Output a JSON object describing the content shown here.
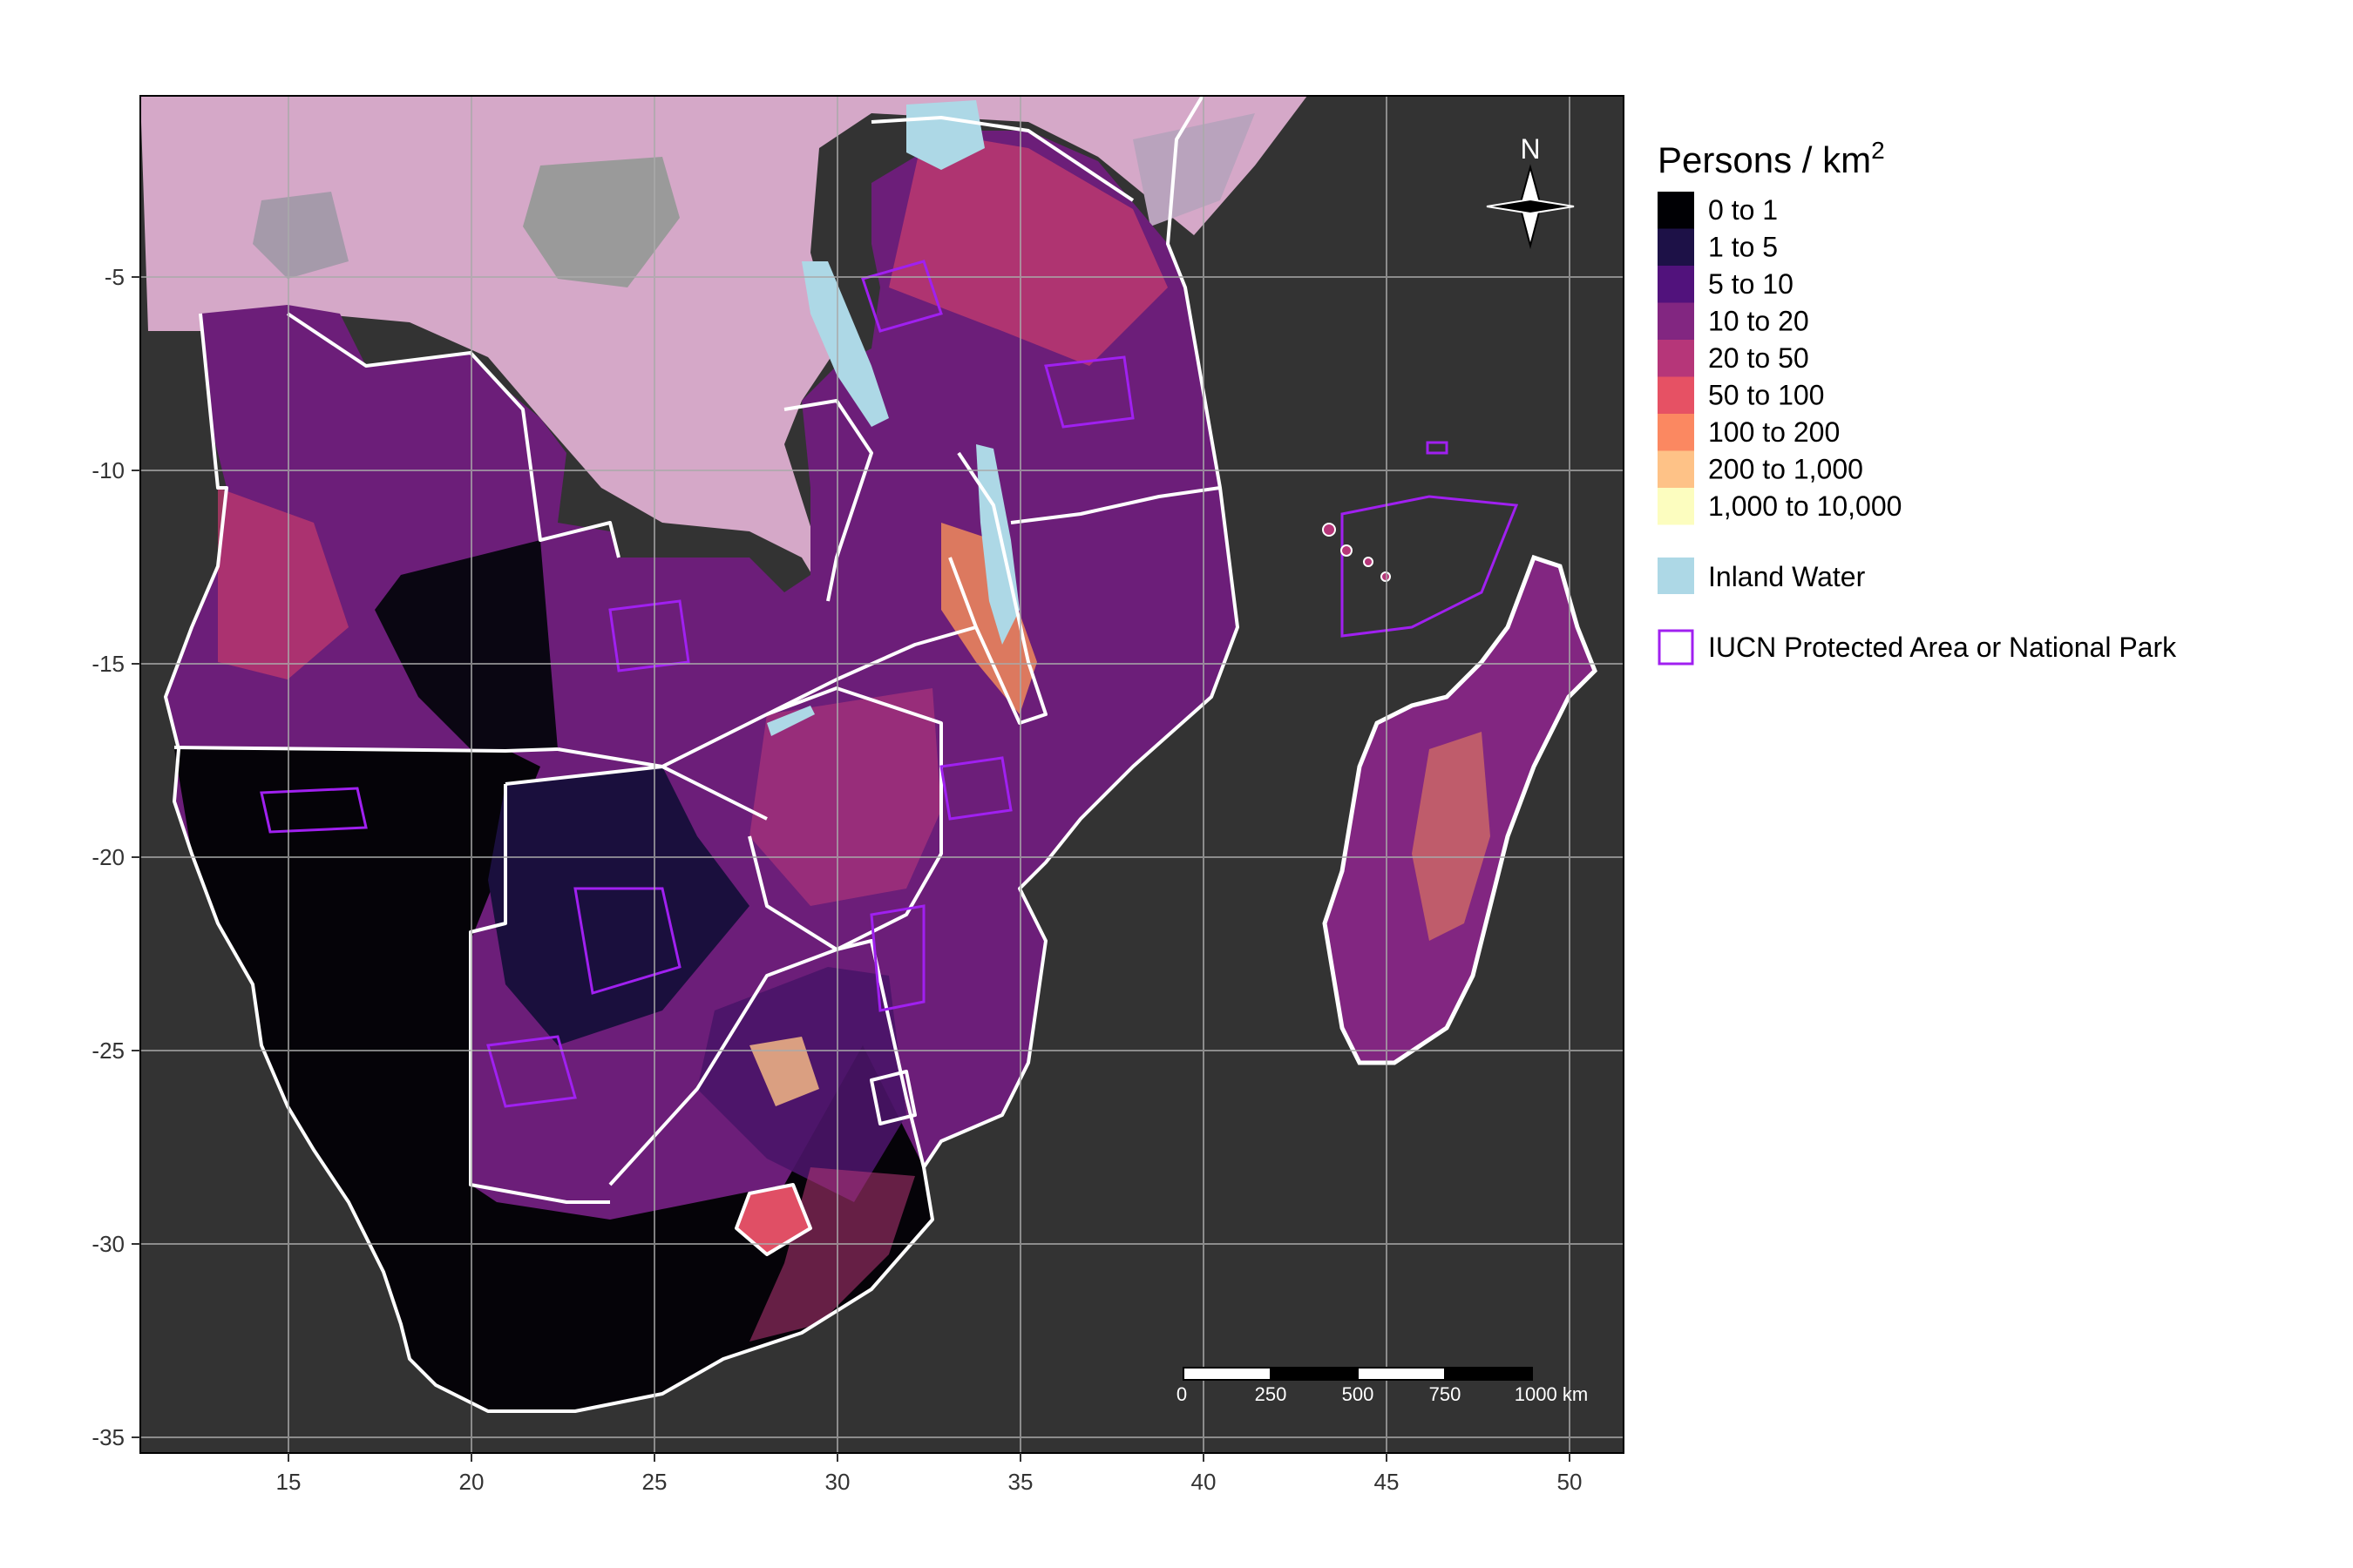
{
  "axes": {
    "x_ticks": [
      "15",
      "20",
      "25",
      "30",
      "35",
      "40",
      "45",
      "50"
    ],
    "y_ticks": [
      "-5",
      "-10",
      "-15",
      "-20",
      "-25",
      "-30",
      "-35"
    ]
  },
  "legend": {
    "title": "Persons / km",
    "title_superscript": "2",
    "density_classes": [
      {
        "label": "0 to 1",
        "color": "#000004"
      },
      {
        "label": "1 to 5",
        "color": "#1d1147"
      },
      {
        "label": "5 to 10",
        "color": "#51127c"
      },
      {
        "label": "10 to 20",
        "color": "#822681"
      },
      {
        "label": "20 to 50",
        "color": "#b63679"
      },
      {
        "label": "50 to 100",
        "color": "#e65164"
      },
      {
        "label": "100 to 200",
        "color": "#fb8861"
      },
      {
        "label": "200 to 1,000",
        "color": "#fec287"
      },
      {
        "label": "1,000 to 10,000",
        "color": "#fcfdbf"
      }
    ],
    "inland_water": {
      "label": "Inland Water",
      "color": "#add8e6"
    },
    "protected_area": {
      "label": "IUCN Protected Area or National Park",
      "color": "#a020f0"
    }
  },
  "map": {
    "panel_color": "#333333",
    "country_border_color": "#ffffff",
    "north_arrow_label": "N",
    "scale_bar": {
      "labels": [
        "0",
        "250",
        "500",
        "750",
        "1000 km"
      ]
    }
  }
}
